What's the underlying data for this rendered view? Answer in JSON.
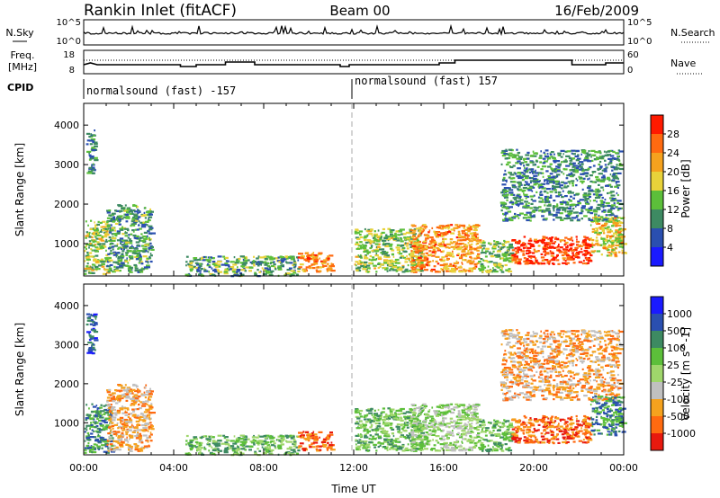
{
  "header": {
    "station": "Rankin Inlet (fitACF)",
    "beam": "Beam 00",
    "date": "16/Feb/2009"
  },
  "top_panels": {
    "nsky_label": "N.Sky",
    "nsky_ticks": [
      "10^5",
      "10^0"
    ],
    "nsearch_label": "N.Search",
    "nsearch_ticks": [
      "10^5",
      "10^0"
    ],
    "freq_label": "Freq.",
    "freq_unit": "[MHz]",
    "freq_ticks": [
      "18",
      "8"
    ],
    "nave_label": "Nave",
    "nave_ticks": [
      "60",
      "0"
    ],
    "cpid_label": "CPID",
    "cpid_segments": [
      "normalsound (fast) -157",
      "normalsound (fast) 157"
    ]
  },
  "colors": {
    "power": [
      "#1a1aff",
      "#2a4fb0",
      "#3d8a62",
      "#5cbf3a",
      "#e8d23a",
      "#f5a21e",
      "#ff6a10",
      "#ff1a00"
    ],
    "velocity": [
      "#e8190e",
      "#ff6a10",
      "#f5a21e",
      "#c0c0c0",
      "#9fd66b",
      "#5cbf3a",
      "#3d8a62",
      "#2a4fb0",
      "#1a1aff"
    ]
  },
  "chart_data": [
    {
      "type": "heatmap",
      "name": "power",
      "xlabel": "",
      "ylabel": "Slant Range [km]",
      "x_ticks": [
        "00:00",
        "04:00",
        "08:00",
        "12:00",
        "16:00",
        "20:00",
        "00:00"
      ],
      "xlim_hours": [
        0,
        24
      ],
      "ylim_km": [
        180,
        4550
      ],
      "y_ticks": [
        1000,
        2000,
        3000,
        4000
      ],
      "colorbar_label": "Power [dB]",
      "colorbar_ticks": [
        "4",
        "8",
        "12",
        "16",
        "20",
        "24",
        "28"
      ],
      "colorbar_range": [
        0,
        32
      ],
      "scatter_regions": [
        {
          "t": [
            0.0,
            1.0
          ],
          "r": [
            250,
            1600
          ],
          "level": 14
        },
        {
          "t": [
            1.0,
            3.0
          ],
          "r": [
            300,
            2000
          ],
          "level": 9
        },
        {
          "t": [
            0.1,
            0.5
          ],
          "r": [
            2800,
            3900
          ],
          "level": 8
        },
        {
          "t": [
            4.5,
            9.5
          ],
          "r": [
            200,
            700
          ],
          "level": 10
        },
        {
          "t": [
            9.5,
            11.0
          ],
          "r": [
            300,
            800
          ],
          "level": 22
        },
        {
          "t": [
            12.0,
            15.0
          ],
          "r": [
            300,
            1400
          ],
          "level": 13
        },
        {
          "t": [
            14.5,
            17.5
          ],
          "r": [
            300,
            1500
          ],
          "level": 21
        },
        {
          "t": [
            17.5,
            19.0
          ],
          "r": [
            300,
            1100
          ],
          "level": 12
        },
        {
          "t": [
            19.0,
            22.5
          ],
          "r": [
            500,
            1200
          ],
          "level": 27
        },
        {
          "t": [
            22.5,
            24.0
          ],
          "r": [
            700,
            1700
          ],
          "level": 17
        },
        {
          "t": [
            18.5,
            23.8
          ],
          "r": [
            1600,
            3400
          ],
          "level": 8
        }
      ]
    },
    {
      "type": "heatmap",
      "name": "velocity",
      "xlabel": "Time UT",
      "ylabel": "Slant Range [km]",
      "x_ticks": [
        "00:00",
        "04:00",
        "08:00",
        "12:00",
        "16:00",
        "20:00",
        "00:00"
      ],
      "xlim_hours": [
        0,
        24
      ],
      "ylim_km": [
        180,
        4550
      ],
      "y_ticks": [
        1000,
        2000,
        3000,
        4000
      ],
      "colorbar_label": "Velocity [m s^-1]",
      "colorbar_ticks": [
        "-1000",
        "-500",
        "-100",
        "-25",
        "25",
        "100",
        "500",
        "1000"
      ],
      "scatter_regions": [
        {
          "t": [
            0.0,
            1.2
          ],
          "r": [
            250,
            1500
          ],
          "level": 6
        },
        {
          "t": [
            1.0,
            3.0
          ],
          "r": [
            300,
            2000
          ],
          "level": 2
        },
        {
          "t": [
            0.1,
            0.5
          ],
          "r": [
            2800,
            3900
          ],
          "level": 7
        },
        {
          "t": [
            4.5,
            9.5
          ],
          "r": [
            200,
            700
          ],
          "level": 5
        },
        {
          "t": [
            9.5,
            11.0
          ],
          "r": [
            300,
            800
          ],
          "level": 1
        },
        {
          "t": [
            12.0,
            15.0
          ],
          "r": [
            300,
            1400
          ],
          "level": 5
        },
        {
          "t": [
            14.5,
            17.5
          ],
          "r": [
            300,
            1500
          ],
          "level": 4
        },
        {
          "t": [
            17.5,
            19.0
          ],
          "r": [
            300,
            1100
          ],
          "level": 5
        },
        {
          "t": [
            19.0,
            22.5
          ],
          "r": [
            500,
            1200
          ],
          "level": 1
        },
        {
          "t": [
            22.5,
            24.0
          ],
          "r": [
            700,
            1700
          ],
          "level": 6
        },
        {
          "t": [
            18.5,
            23.8
          ],
          "r": [
            1600,
            3400
          ],
          "level": 2
        }
      ]
    }
  ]
}
